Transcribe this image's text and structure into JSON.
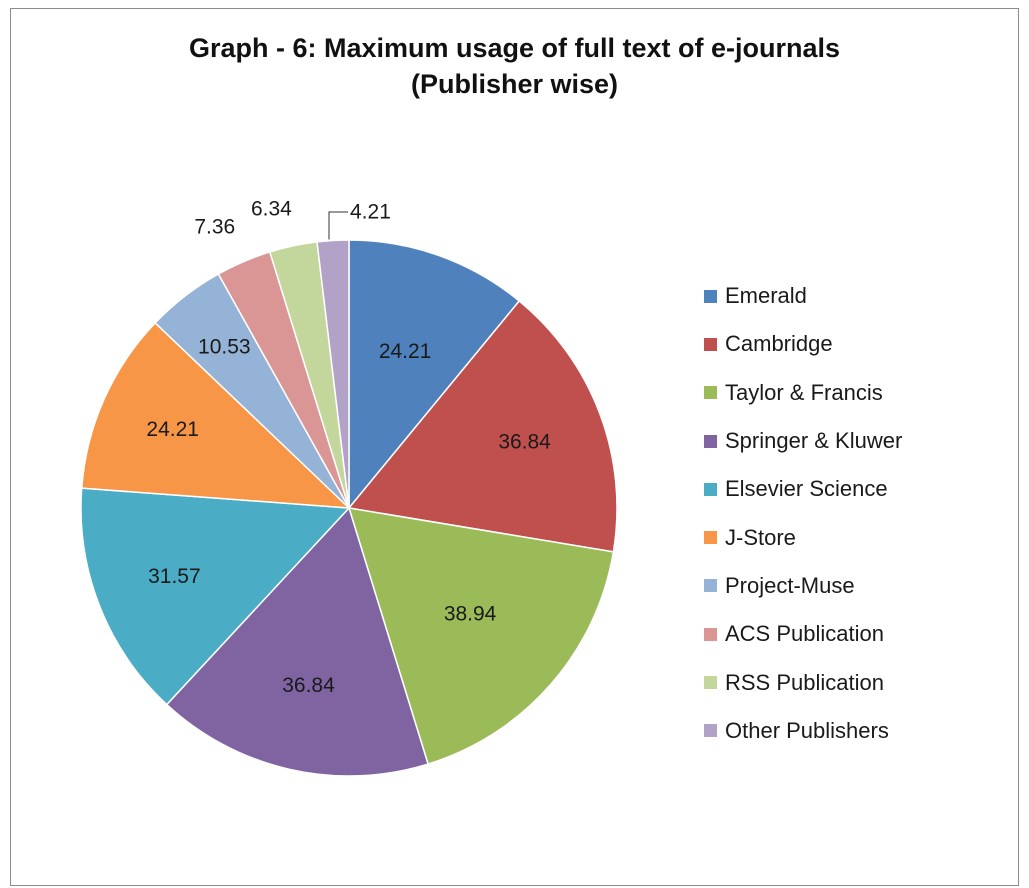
{
  "chart_data": {
    "type": "pie",
    "title": "Graph - 6: Maximum usage of full text of e-journals",
    "subtitle": "(Publisher wise)",
    "legend_position": "right",
    "slices": [
      {
        "label": "Emerald",
        "value": 24.21,
        "color": "#4f81bd"
      },
      {
        "label": "Cambridge",
        "value": 36.84,
        "color": "#c0504d"
      },
      {
        "label": "Taylor & Francis",
        "value": 38.94,
        "color": "#9bbb59"
      },
      {
        "label": "Springer & Kluwer",
        "value": 36.84,
        "color": "#8064a2"
      },
      {
        "label": "Elsevier Science",
        "value": 31.57,
        "color": "#4bacc6"
      },
      {
        "label": "J-Store",
        "value": 24.21,
        "color": "#f79646"
      },
      {
        "label": "Project-Muse",
        "value": 10.53,
        "color": "#95b3d7"
      },
      {
        "label": "ACS Publication",
        "value": 7.36,
        "color": "#d99694"
      },
      {
        "label": "RSS Publication",
        "value": 6.34,
        "color": "#c3d69b"
      },
      {
        "label": "Other Publishers",
        "value": 4.21,
        "color": "#b3a2c7"
      }
    ]
  }
}
